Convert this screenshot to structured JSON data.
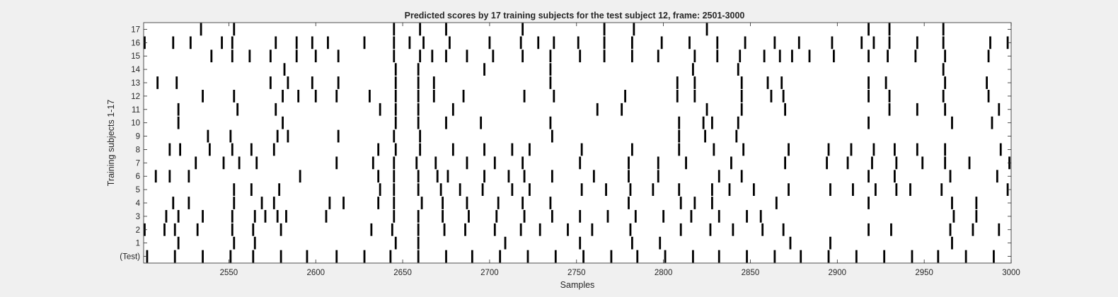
{
  "chart_data": {
    "type": "raster",
    "title": "Predicted scores by 17 training subjects for the test subject 12, frame: 2501-3000",
    "xlabel": "Samples",
    "ylabel": "Training subjects 1-17",
    "xlim": [
      2501,
      3000
    ],
    "x_ticks": [
      2550,
      2600,
      2650,
      2700,
      2750,
      2800,
      2850,
      2900,
      2950,
      3000
    ],
    "row_labels": [
      "(Test)",
      "1",
      "2",
      "3",
      "4",
      "5",
      "6",
      "7",
      "8",
      "9",
      "10",
      "11",
      "12",
      "13",
      "14",
      "15",
      "16",
      "17"
    ],
    "grid": false,
    "colors": {
      "background": "#f0f0f0",
      "plot": "#ffffff",
      "spike": "#000000",
      "text": "#262626"
    },
    "rows": [
      {
        "label": "(Test)",
        "events": [
          2503,
          2519,
          2535,
          2551,
          2564,
          2580,
          2595,
          2612,
          2628,
          2643,
          2659,
          2675,
          2690,
          2706,
          2722,
          2738,
          2754,
          2770,
          2785,
          2801,
          2817,
          2832,
          2848,
          2864,
          2879,
          2895,
          2911,
          2927,
          2943,
          2958,
          2974,
          2990
        ]
      },
      {
        "label": "1",
        "events": [
          2521,
          2553,
          2565,
          2646,
          2659,
          2709,
          2752,
          2782,
          2798,
          2873,
          2896,
          2966
        ]
      },
      {
        "label": "2",
        "events": [
          2501,
          2513,
          2519,
          2532,
          2552,
          2564,
          2580,
          2632,
          2644,
          2659,
          2674,
          2686,
          2703,
          2718,
          2729,
          2745,
          2759,
          2781,
          2810,
          2827,
          2840,
          2857,
          2869,
          2918,
          2931,
          2965,
          2978,
          2993
        ]
      },
      {
        "label": "3",
        "events": [
          2514,
          2521,
          2535,
          2552,
          2565,
          2571,
          2578,
          2583,
          2606,
          2645,
          2659,
          2673,
          2688,
          2704,
          2720,
          2736,
          2752,
          2768,
          2784,
          2800,
          2816,
          2832,
          2848,
          2856,
          2967,
          2980
        ]
      },
      {
        "label": "4",
        "events": [
          2518,
          2527,
          2553,
          2569,
          2576,
          2608,
          2616,
          2636,
          2645,
          2661,
          2673,
          2687,
          2705,
          2719,
          2735,
          2780,
          2810,
          2818,
          2828,
          2865,
          2918,
          2966,
          2980
        ]
      },
      {
        "label": "5",
        "events": [
          2553,
          2563,
          2579,
          2637,
          2645,
          2659,
          2672,
          2683,
          2696,
          2713,
          2723,
          2753,
          2767,
          2781,
          2794,
          2809,
          2828,
          2838,
          2852,
          2872,
          2896,
          2909,
          2922,
          2934,
          2942,
          2960,
          2998
        ]
      },
      {
        "label": "6",
        "events": [
          2508,
          2516,
          2527,
          2591,
          2636,
          2645,
          2659,
          2670,
          2676,
          2697,
          2711,
          2720,
          2736,
          2760,
          2780,
          2797,
          2832,
          2845,
          2918,
          2933,
          2965,
          2992
        ]
      },
      {
        "label": "7",
        "events": [
          2531,
          2547,
          2556,
          2566,
          2612,
          2633,
          2645,
          2658,
          2669,
          2687,
          2703,
          2719,
          2752,
          2780,
          2797,
          2813,
          2839,
          2870,
          2894,
          2906,
          2920,
          2934,
          2949,
          2962,
          2976,
          2999
        ]
      },
      {
        "label": "8",
        "events": [
          2516,
          2522,
          2539,
          2552,
          2563,
          2576,
          2636,
          2646,
          2660,
          2679,
          2697,
          2713,
          2723,
          2753,
          2782,
          2809,
          2829,
          2846,
          2872,
          2895,
          2908,
          2921,
          2933,
          2946,
          2962,
          2994
        ]
      },
      {
        "label": "9",
        "events": [
          2538,
          2551,
          2578,
          2584,
          2613,
          2645,
          2660,
          2736,
          2809,
          2824,
          2842
        ]
      },
      {
        "label": "10",
        "events": [
          2521,
          2581,
          2646,
          2659,
          2675,
          2695,
          2735,
          2809,
          2823,
          2828,
          2843,
          2918,
          2966,
          2989
        ]
      },
      {
        "label": "11",
        "events": [
          2521,
          2555,
          2577,
          2637,
          2646,
          2659,
          2679,
          2762,
          2776,
          2825,
          2845,
          2870,
          2930,
          2946,
          2962,
          2993
        ]
      },
      {
        "label": "12",
        "events": [
          2535,
          2553,
          2581,
          2590,
          2600,
          2612,
          2631,
          2646,
          2659,
          2668,
          2685,
          2720,
          2737,
          2778,
          2808,
          2818,
          2845,
          2862,
          2869,
          2918,
          2930,
          2961,
          2987
        ]
      },
      {
        "label": "13",
        "events": [
          2509,
          2520,
          2574,
          2584,
          2598,
          2613,
          2646,
          2659,
          2668,
          2735,
          2808,
          2818,
          2845,
          2860,
          2868,
          2918,
          2928,
          2962,
          2986
        ]
      },
      {
        "label": "14",
        "events": [
          2582,
          2646,
          2659,
          2697,
          2735,
          2817,
          2843,
          2961
        ]
      },
      {
        "label": "15",
        "events": [
          2540,
          2552,
          2562,
          2574,
          2589,
          2600,
          2613,
          2645,
          2660,
          2667,
          2675,
          2687,
          2702,
          2719,
          2735,
          2752,
          2766,
          2782,
          2797,
          2818,
          2831,
          2844,
          2858,
          2867,
          2874,
          2884,
          2898,
          2918,
          2929,
          2945,
          2962,
          2987
        ]
      },
      {
        "label": "16",
        "events": [
          2501,
          2518,
          2528,
          2546,
          2552,
          2577,
          2589,
          2598,
          2607,
          2628,
          2645,
          2654,
          2662,
          2677,
          2700,
          2718,
          2728,
          2737,
          2751,
          2766,
          2782,
          2799,
          2815,
          2831,
          2847,
          2864,
          2878,
          2897,
          2914,
          2921,
          2930,
          2946,
          2961,
          2988,
          2998
        ]
      },
      {
        "label": "17",
        "events": [
          2534,
          2553,
          2645,
          2660,
          2675,
          2719,
          2766,
          2783,
          2825,
          2918,
          2930,
          2961
        ]
      }
    ]
  }
}
